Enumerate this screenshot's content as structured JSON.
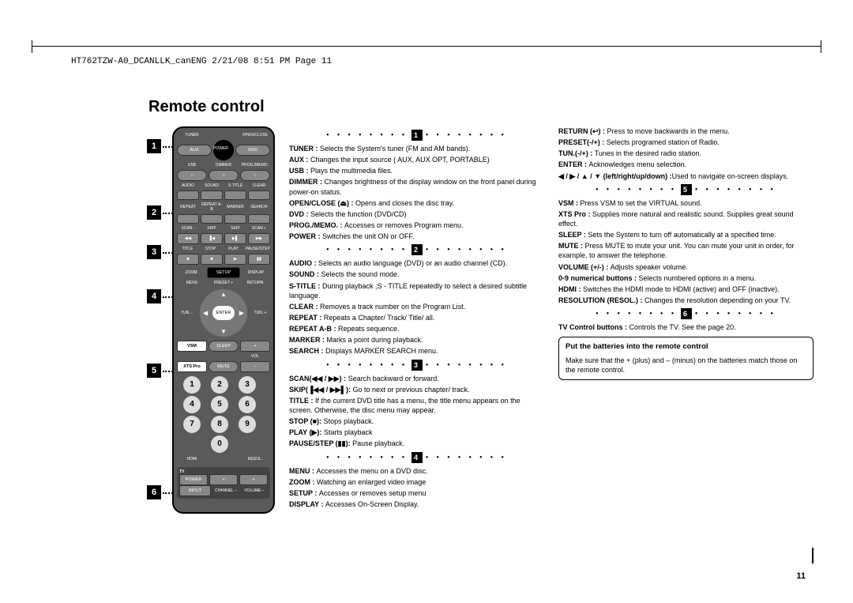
{
  "header": "HT762TZW-A0_DCANLLK_canENG  2/21/08  8:51 PM  Page 11",
  "title": "Remote control",
  "page_number": "11",
  "remote": {
    "row1": [
      "TUNER",
      "",
      "OPEN/CLOSE"
    ],
    "power": "POWER",
    "row2": [
      "AUX",
      "",
      "DVD"
    ],
    "row3": [
      "USB",
      "DIMMER",
      "PROG./MEMO."
    ],
    "row4": [
      "AUDIO",
      "SOUND",
      "S-TITLE",
      "CLEAR"
    ],
    "row5": [
      "REPEAT",
      "REPEAT A-B",
      "MARKER",
      "-SEARCH-"
    ],
    "row6": [
      "SCAN -",
      "SKIP",
      "SKIP",
      "SCAN +"
    ],
    "row7": [
      "TITLE",
      "STOP",
      "PLAY",
      "PAUSE/STEP"
    ],
    "row8": [
      "ZOOM",
      "SETUP",
      "DISPLAY"
    ],
    "row9": [
      "MENU",
      "PRESET +",
      "RETURN"
    ],
    "tun_l": "TUN. -",
    "tun_r": "TUN. +",
    "enter": "ENTER",
    "row10": [
      "VSM",
      "SLEEP",
      "+"
    ],
    "row10b": [
      "",
      "",
      "VOL"
    ],
    "row11": [
      "XTS Pro",
      "MUTE",
      "–"
    ],
    "nums": [
      "1",
      "2",
      "3",
      "4",
      "5",
      "6",
      "7",
      "8",
      "9",
      "0"
    ],
    "row12": [
      "HDMI",
      "",
      "RESOL."
    ],
    "tv": {
      "label": "TV",
      "r1": [
        "POWER",
        "+",
        "+"
      ],
      "r2": [
        "INPUT",
        "CHANNEL –",
        "VOLUME –"
      ]
    }
  },
  "section_positions": [
    16,
    100,
    150,
    206,
    300,
    454
  ],
  "sections": [
    {
      "num": "1",
      "items": [
        {
          "b": "TUNER : ",
          "t": "Selects the System's  tuner (FM and AM bands)."
        },
        {
          "b": "AUX : ",
          "t": "Changes the input source ( AUX, AUX OPT, PORTABLE)"
        },
        {
          "b": "USB : ",
          "t": "Plays the multimedia files."
        },
        {
          "b": "DIMMER : ",
          "t": "Changes brightness of the display window on the front panel during power-on status."
        },
        {
          "b": "OPEN/CLOSE (⏏) : ",
          "t": "Opens and closes the disc tray."
        },
        {
          "b": "DVD : ",
          "t": "Selects the function (DVD/CD)"
        },
        {
          "b": "PROG./MEMO. : ",
          "t": "Accesses or removes Program menu."
        },
        {
          "b": "POWER : ",
          "t": "Switches the unit ON or OFF."
        }
      ]
    },
    {
      "num": "2",
      "items": [
        {
          "b": "AUDIO : ",
          "t": "Selects an audio language (DVD) or an audio channel (CD)."
        },
        {
          "b": "SOUND : ",
          "t": "Selects the sound mode."
        },
        {
          "b": "S-TITLE : ",
          "t": "During playback ,S - TITLE repeatedly to select a desired subtitle language."
        },
        {
          "b": "CLEAR : ",
          "t": "Removes a track number on the Program List."
        },
        {
          "b": "REPEAT : ",
          "t": "Repeats a Chapter/ Track/ Title/ all."
        },
        {
          "b": "REPEAT A-B : ",
          "t": "Repeats sequence."
        },
        {
          "b": "MARKER : ",
          "t": "Marks a point during playback."
        },
        {
          "b": "SEARCH : ",
          "t": "Displays MARKER SEARCH menu."
        }
      ]
    },
    {
      "num": "3",
      "items": [
        {
          "b": "SCAN(◀◀ / ▶▶) : ",
          "t": "Search backward or forward."
        },
        {
          "b": "SKIP(▐◀◀ / ▶▶▌): ",
          "t": "Go to next or previous chapter/ track."
        },
        {
          "b": "TITLE : ",
          "t": "If the current DVD title has a menu, the title menu appears on the screen. Otherwise, the disc menu may appear."
        },
        {
          "b": "STOP (■): ",
          "t": "Stops playback."
        },
        {
          "b": "PLAY (▶): ",
          "t": "Starts playback"
        },
        {
          "b": "PAUSE/STEP (▮▮): ",
          "t": "Pause playback."
        }
      ]
    },
    {
      "num": "4",
      "items": [
        {
          "b": "MENU : ",
          "t": "Accesses the menu on a DVD disc."
        },
        {
          "b": "ZOOM : ",
          "t": "Watching an enlarged video image"
        },
        {
          "b": "SETUP : ",
          "t": "Accesses or removes setup menu"
        },
        {
          "b": "DISPLAY : ",
          "t": "Accesses On-Screen Display."
        }
      ]
    }
  ],
  "sections_right": [
    {
      "num_continue": true,
      "items": [
        {
          "b": "RETURN (↩) : ",
          "t": "Press to move backwards in the menu."
        },
        {
          "b": "PRESET(-/+) : ",
          "t": "Selects programed station of Radio."
        },
        {
          "b": "TUN.(-/+) : ",
          "t": "Tunes in the desired radio station."
        },
        {
          "b": "ENTER : ",
          "t": "Acknowledges menu selection."
        },
        {
          "b": "◀ / ▶ / ▲ / ▼ (left/right/up/down) :",
          "t": "Used to navigate on-screen displays."
        }
      ]
    },
    {
      "num": "5",
      "items": [
        {
          "b": "VSM : ",
          "t": "Press VSM to set the VIRTUAL sound."
        },
        {
          "b": "XTS Pro : ",
          "t": "Supplies more natural and realistic sound. Supplies great sound effect."
        },
        {
          "b": "SLEEP : ",
          "t": "Sets the System to turn off automatically at a specified time."
        },
        {
          "b": "MUTE : ",
          "t": "Press MUTE to mute your unit. You can mute your unit in order, for example, to answer the telephone."
        },
        {
          "b": "VOLUME (+/-) : ",
          "t": "Adjusts speaker volume."
        },
        {
          "b": "0-9 numerical buttons : ",
          "t": "Selects numbered options in a menu."
        },
        {
          "b": "HDMI : ",
          "t": "Switches the HDMI mode to HDMI (active) and OFF (inactive)."
        },
        {
          "b": "RESOLUTION (RESOL.) : ",
          "t": "Changes the resolution depending on your TV."
        }
      ]
    },
    {
      "num": "6",
      "items": [
        {
          "b": "TV Control buttons : ",
          "t": "Controls the TV. See the page 20."
        }
      ]
    }
  ],
  "battery": {
    "heading": "Put the batteries into the remote control",
    "text": "Make sure that the + (plus) and – (minus) on the batteries match those on the remote control."
  }
}
